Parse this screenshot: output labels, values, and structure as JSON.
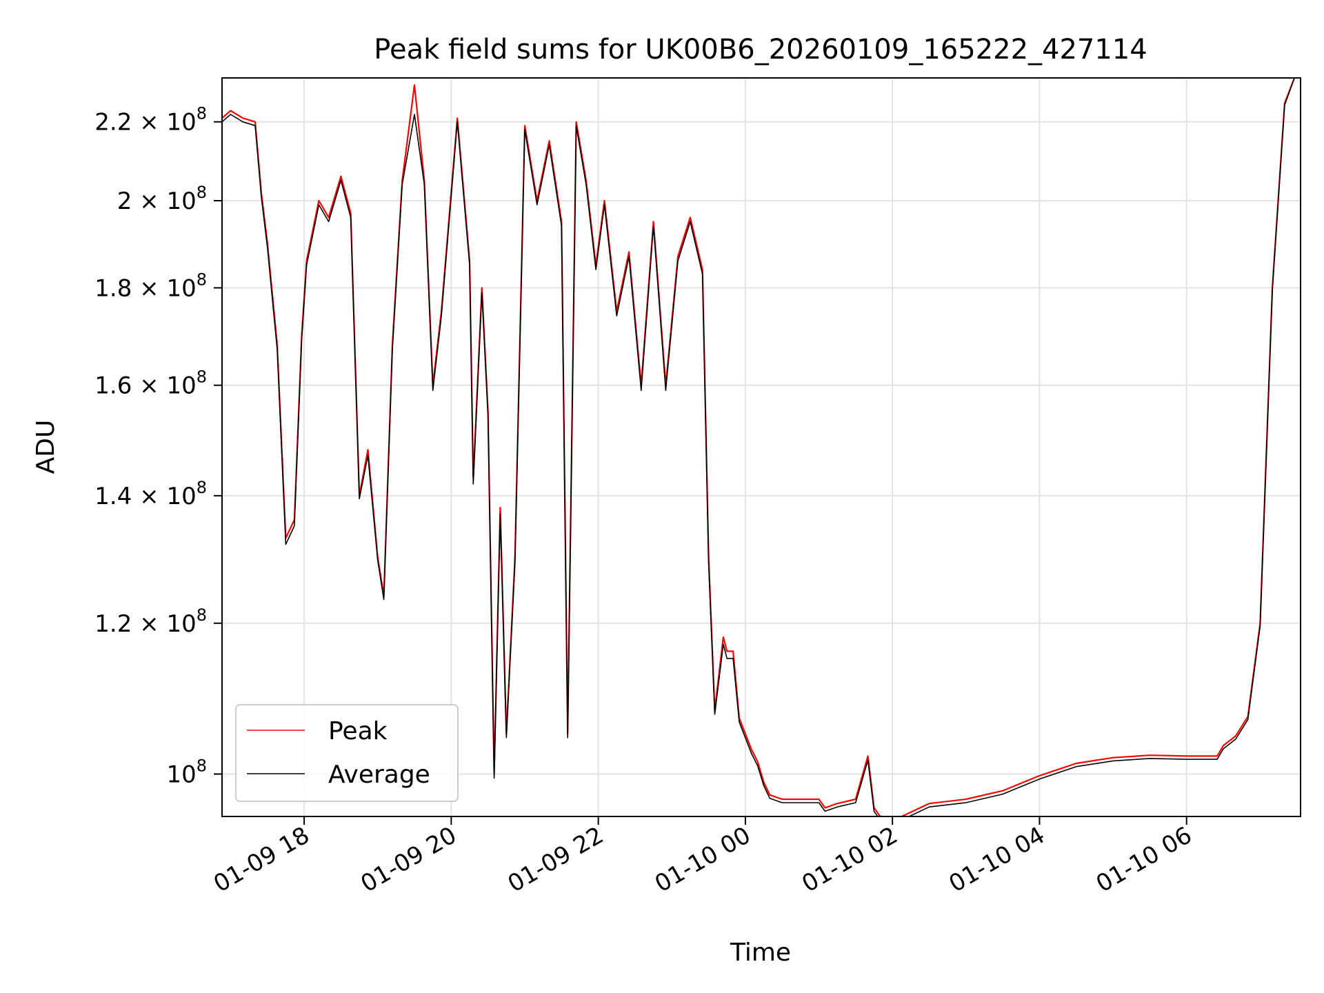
{
  "chart_data": {
    "type": "line",
    "title": "Peak field sums for UK00B6_20260109_165222_427114",
    "xlabel": "Time",
    "ylabel": "ADU",
    "y_scale": "log",
    "grid": true,
    "legend_position": "lower-left",
    "xlim": [
      "2026-01-09 16:53",
      "2026-01-10 07:33"
    ],
    "ylim": [
      95000000.0,
      232000000.0
    ],
    "x_ticks": [
      {
        "value": "2026-01-09 18:00",
        "label": "01-09 18"
      },
      {
        "value": "2026-01-09 20:00",
        "label": "01-09 20"
      },
      {
        "value": "2026-01-09 22:00",
        "label": "01-09 22"
      },
      {
        "value": "2026-01-10 00:00",
        "label": "01-10 00"
      },
      {
        "value": "2026-01-10 02:00",
        "label": "01-10 02"
      },
      {
        "value": "2026-01-10 04:00",
        "label": "01-10 04"
      },
      {
        "value": "2026-01-10 06:00",
        "label": "01-10 06"
      }
    ],
    "y_ticks": [
      {
        "value": 100000000,
        "mantissa": "",
        "exponent": "8"
      },
      {
        "value": 120000000,
        "mantissa": "1.2",
        "exponent": "8"
      },
      {
        "value": 140000000,
        "mantissa": "1.4",
        "exponent": "8"
      },
      {
        "value": 160000000,
        "mantissa": "1.6",
        "exponent": "8"
      },
      {
        "value": 180000000,
        "mantissa": "1.8",
        "exponent": "8"
      },
      {
        "value": 200000000,
        "mantissa": "2",
        "exponent": "8"
      },
      {
        "value": 220000000,
        "mantissa": "2.2",
        "exponent": "8"
      }
    ],
    "x": [
      "2026-01-09 16:53",
      "2026-01-09 17:00",
      "2026-01-09 17:10",
      "2026-01-09 17:20",
      "2026-01-09 17:25",
      "2026-01-09 17:30",
      "2026-01-09 17:38",
      "2026-01-09 17:45",
      "2026-01-09 17:52",
      "2026-01-09 17:58",
      "2026-01-09 18:02",
      "2026-01-09 18:12",
      "2026-01-09 18:20",
      "2026-01-09 18:30",
      "2026-01-09 18:38",
      "2026-01-09 18:45",
      "2026-01-09 18:52",
      "2026-01-09 19:00",
      "2026-01-09 19:05",
      "2026-01-09 19:12",
      "2026-01-09 19:20",
      "2026-01-09 19:30",
      "2026-01-09 19:38",
      "2026-01-09 19:45",
      "2026-01-09 19:52",
      "2026-01-09 20:05",
      "2026-01-09 20:15",
      "2026-01-09 20:18",
      "2026-01-09 20:25",
      "2026-01-09 20:30",
      "2026-01-09 20:35",
      "2026-01-09 20:40",
      "2026-01-09 20:45",
      "2026-01-09 20:52",
      "2026-01-09 21:00",
      "2026-01-09 21:10",
      "2026-01-09 21:20",
      "2026-01-09 21:30",
      "2026-01-09 21:35",
      "2026-01-09 21:42",
      "2026-01-09 21:50",
      "2026-01-09 21:58",
      "2026-01-09 22:05",
      "2026-01-09 22:15",
      "2026-01-09 22:25",
      "2026-01-09 22:35",
      "2026-01-09 22:45",
      "2026-01-09 22:55",
      "2026-01-09 23:05",
      "2026-01-09 23:15",
      "2026-01-09 23:25",
      "2026-01-09 23:30",
      "2026-01-09 23:35",
      "2026-01-09 23:42",
      "2026-01-09 23:45",
      "2026-01-09 23:50",
      "2026-01-09 23:55",
      "2026-01-10 00:05",
      "2026-01-10 00:10",
      "2026-01-10 00:15",
      "2026-01-10 00:20",
      "2026-01-10 00:30",
      "2026-01-10 01:00",
      "2026-01-10 01:05",
      "2026-01-10 01:15",
      "2026-01-10 01:30",
      "2026-01-10 01:40",
      "2026-01-10 01:45",
      "2026-01-10 01:50",
      "2026-01-10 02:00",
      "2026-01-10 02:30",
      "2026-01-10 03:00",
      "2026-01-10 03:30",
      "2026-01-10 04:00",
      "2026-01-10 04:30",
      "2026-01-10 05:00",
      "2026-01-10 05:30",
      "2026-01-10 06:00",
      "2026-01-10 06:25",
      "2026-01-10 06:30",
      "2026-01-10 06:40",
      "2026-01-10 06:50",
      "2026-01-10 07:00",
      "2026-01-10 07:10",
      "2026-01-10 07:20",
      "2026-01-10 07:28"
    ],
    "series": [
      {
        "name": "Peak",
        "color": "#ff0000",
        "values": [
          221000000,
          223000000,
          221000000,
          220000000,
          202000000,
          190000000,
          168000000,
          133000000,
          136000000,
          170000000,
          186000000,
          200000000,
          196000000,
          206000000,
          197000000,
          140000000,
          148000000,
          130000000,
          124000000,
          168000000,
          205000000,
          230000000,
          205000000,
          160000000,
          175000000,
          221000000,
          186000000,
          143000000,
          180000000,
          155000000,
          100000000,
          138000000,
          105000000,
          130000000,
          219000000,
          200000000,
          215000000,
          195000000,
          105000000,
          220000000,
          205000000,
          185000000,
          200000000,
          175000000,
          188000000,
          160000000,
          195000000,
          160000000,
          187000000,
          196000000,
          184000000,
          130000000,
          108000000,
          118000000,
          116000000,
          116000000,
          107000000,
          103000000,
          101500000,
          99000000,
          97500000,
          97000000,
          97000000,
          96000000,
          96500000,
          97000000,
          102200000,
          96000000,
          95000000,
          94500000,
          96500000,
          97000000,
          98000000,
          99800000,
          101300000,
          102000000,
          102300000,
          102200000,
          102200000,
          103500000,
          104700000,
          107200000,
          120000000,
          180000000,
          225000000,
          232000000
        ]
      },
      {
        "name": "Average",
        "color": "#000000",
        "values": [
          220000000,
          222000000,
          220000000,
          219000000,
          201000000,
          189000000,
          167000000,
          132000000,
          135000000,
          169000000,
          185000000,
          199000000,
          195000000,
          205000000,
          196000000,
          139500000,
          147000000,
          129500000,
          123500000,
          167000000,
          204000000,
          222000000,
          204000000,
          159000000,
          174000000,
          220000000,
          185000000,
          142000000,
          179000000,
          154000000,
          99500000,
          137000000,
          104500000,
          129000000,
          218000000,
          199000000,
          214000000,
          194000000,
          104500000,
          219000000,
          204000000,
          184000000,
          199000000,
          174000000,
          187000000,
          159000000,
          194000000,
          159000000,
          186000000,
          195000000,
          183000000,
          129000000,
          107500000,
          117000000,
          115000000,
          115000000,
          106500000,
          102500000,
          101000000,
          98600000,
          97100000,
          96600000,
          96600000,
          95600000,
          96100000,
          96600000,
          101700000,
          95600000,
          94600000,
          94100000,
          96100000,
          96600000,
          97600000,
          99400000,
          100900000,
          101600000,
          101900000,
          101800000,
          101800000,
          103100000,
          104300000,
          106800000,
          119600000,
          179500000,
          224500000,
          232000000
        ]
      }
    ]
  }
}
